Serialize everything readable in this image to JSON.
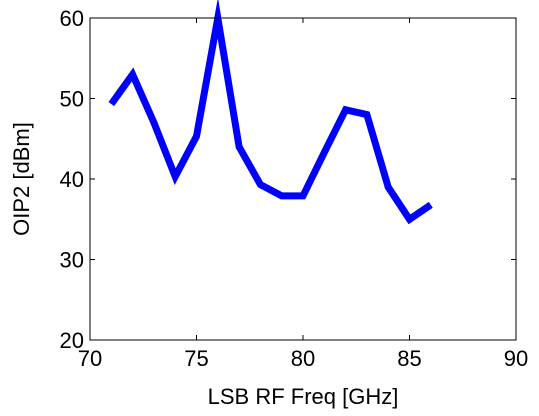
{
  "chart_data": {
    "type": "line",
    "xlabel": "LSB RF Freq [GHz]",
    "ylabel": "OIP2 [dBm]",
    "xlim": [
      70,
      90
    ],
    "ylim": [
      20,
      60
    ],
    "xticks": [
      70,
      75,
      80,
      85,
      90
    ],
    "yticks": [
      20,
      30,
      40,
      50,
      60
    ],
    "grid": false,
    "box": true,
    "series": [
      {
        "color": "#0000ff",
        "x": [
          71,
          72,
          73,
          74,
          75,
          76,
          77,
          78,
          79,
          80,
          81,
          82,
          83,
          84,
          85,
          86
        ],
        "y": [
          49.3,
          53.0,
          47.0,
          40.3,
          45.3,
          60.0,
          44.0,
          39.3,
          37.9,
          37.9,
          43.3,
          48.6,
          48.0,
          39.0,
          35.0,
          36.8
        ]
      }
    ]
  }
}
